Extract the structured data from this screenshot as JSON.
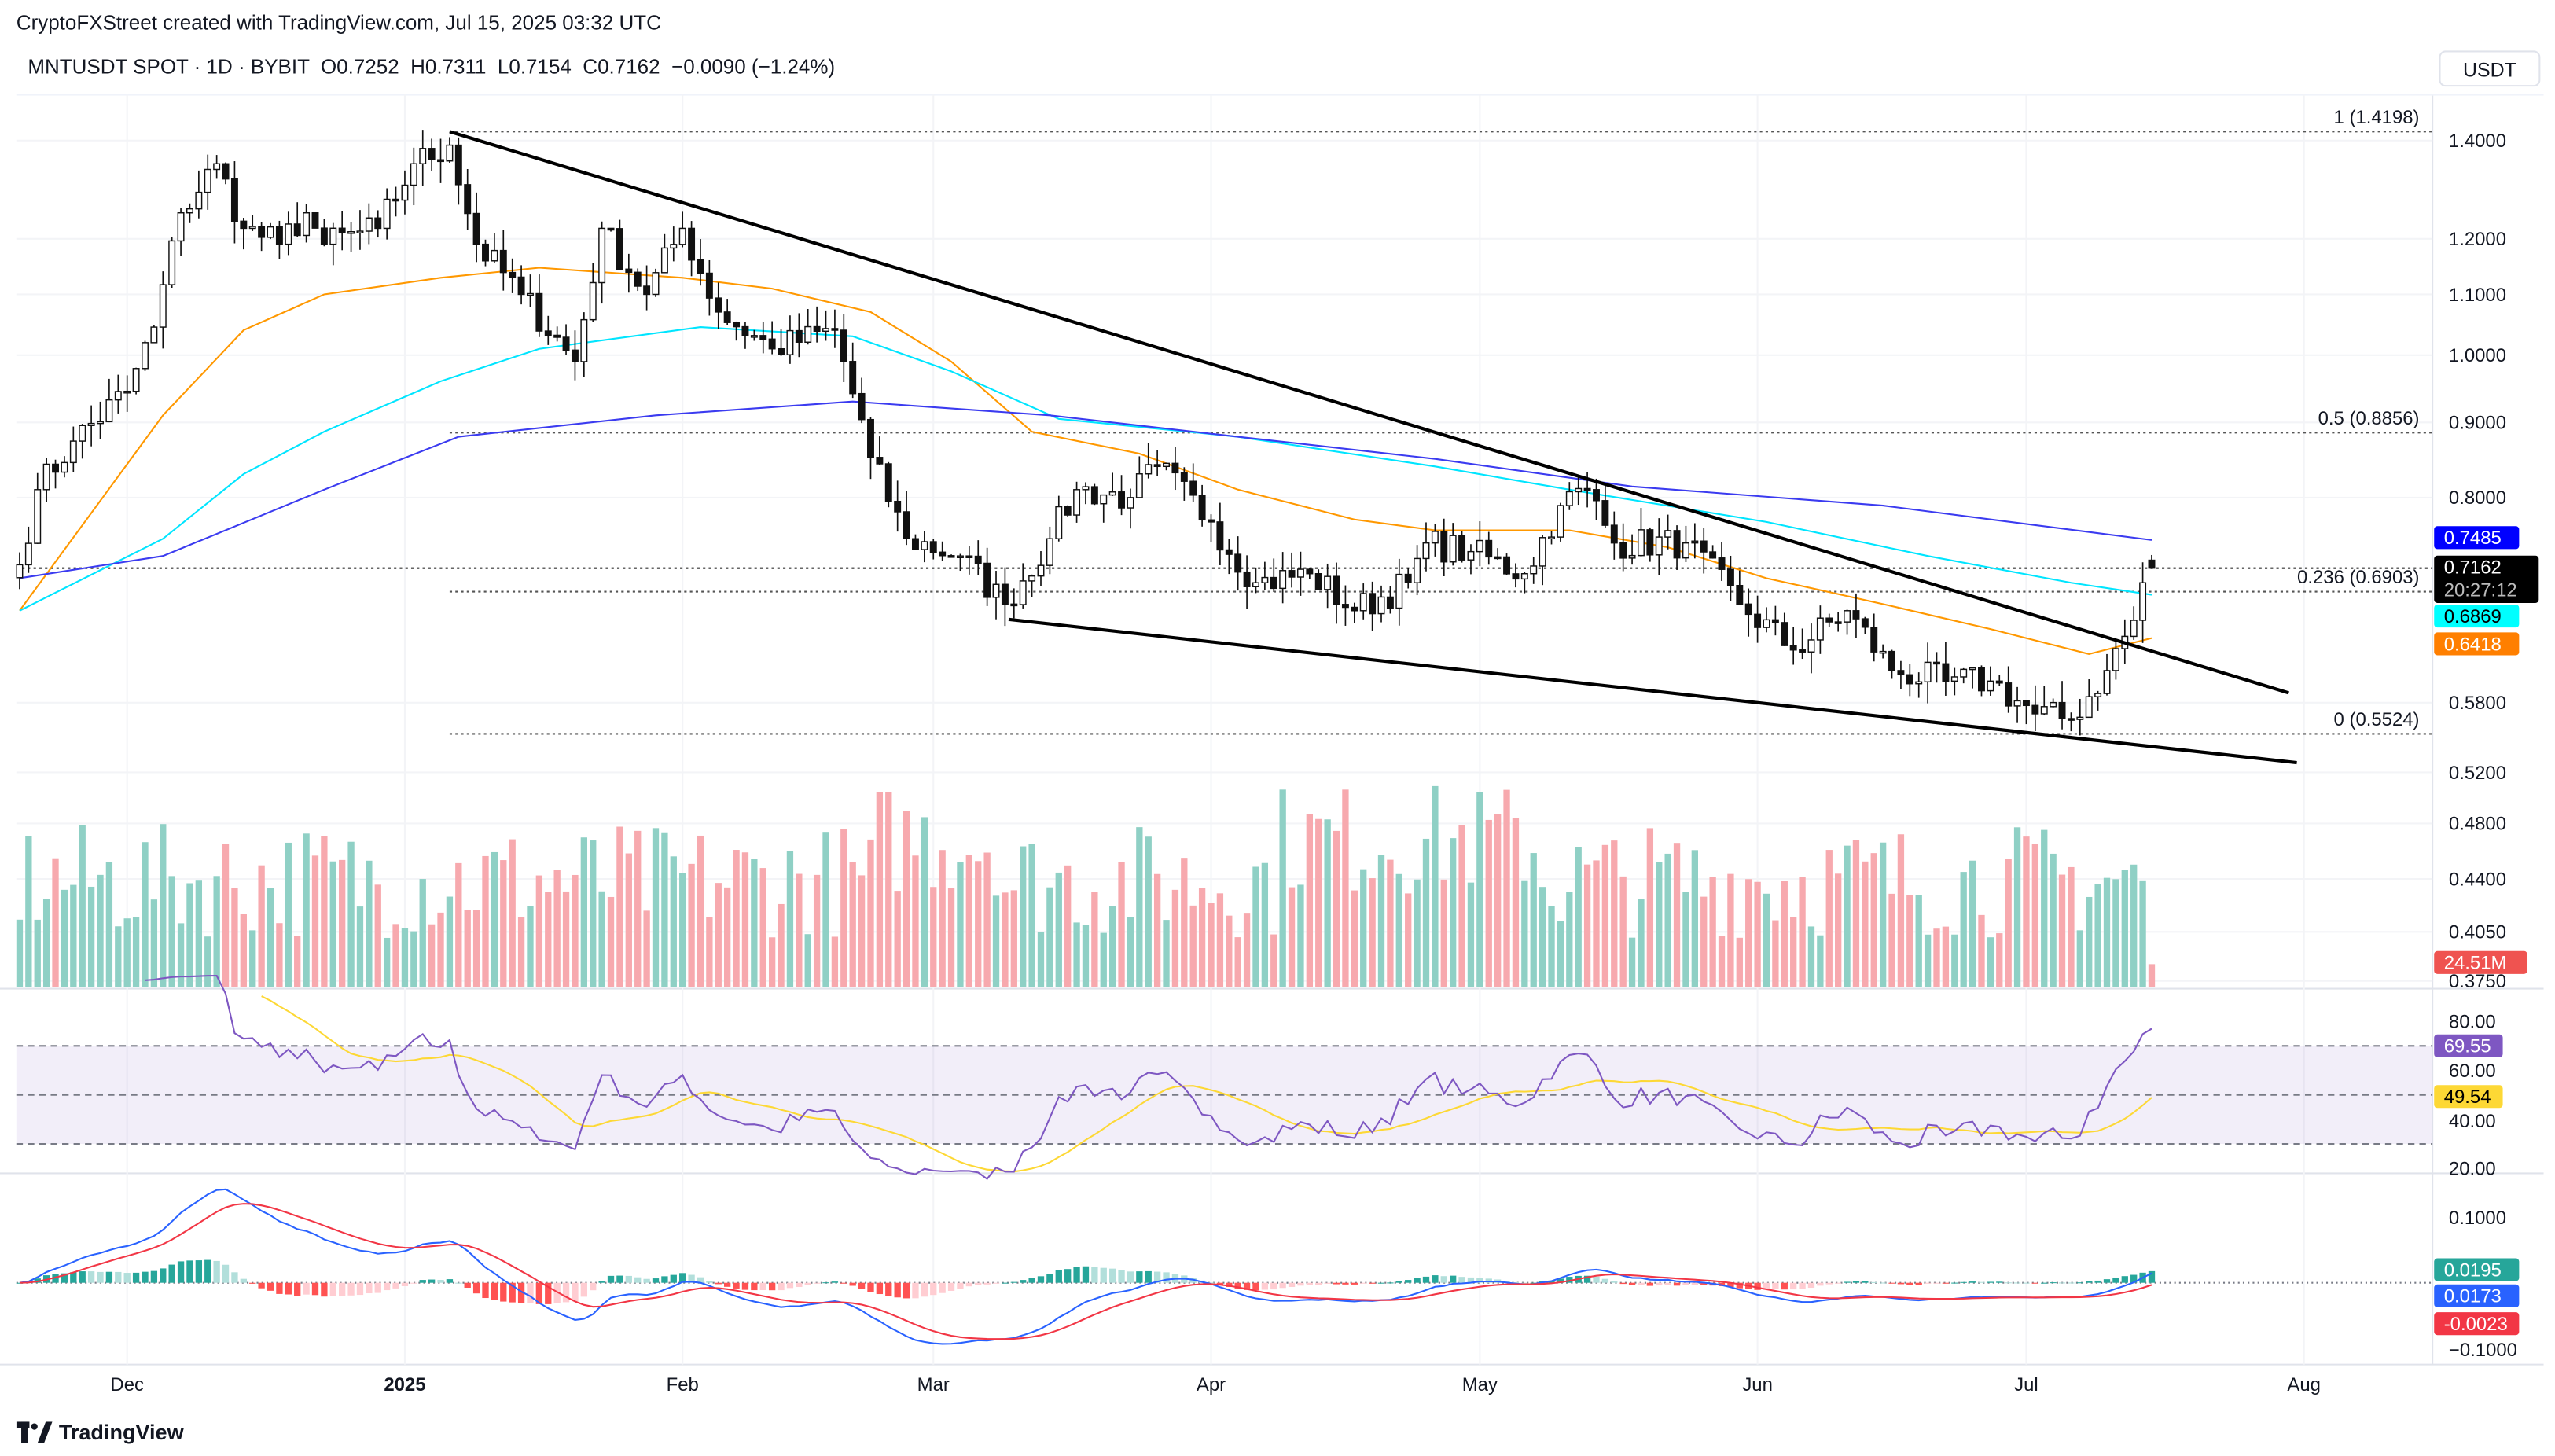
{
  "header": {
    "credit": "CryptoFXStreet created with TradingView.com, Jul 15, 2025 03:32 UTC",
    "legend": "MNTUSDT SPOT · 1D · BYBIT  O0.7252  H0.7311  L0.7154  C0.7162  −0.0090 (−1.24%)",
    "currency_button": "USDT"
  },
  "footer": {
    "logo": "TradingView"
  },
  "colors": {
    "up": "#089981",
    "down": "#f23645",
    "ma50": "#ff9800",
    "ma100": "#00e5ff",
    "ma200": "#3b3bf0",
    "rsi": "#7e57c2",
    "rsi_ma": "#fdd835",
    "macd": "#2962ff",
    "signal": "#f23645"
  },
  "chart_data": {
    "type": "candlestick",
    "symbol": "MNTUSDT",
    "interval": "1D",
    "scale": "log",
    "start_date": "2024-11-19",
    "end_date": "2025-07-15",
    "close_keypoints": [
      [
        0,
        0.72
      ],
      [
        2,
        0.81
      ],
      [
        6,
        0.874
      ],
      [
        12,
        0.945
      ],
      [
        15,
        1.045
      ],
      [
        18,
        1.25
      ],
      [
        22,
        1.35
      ],
      [
        25,
        1.22
      ],
      [
        29,
        1.19
      ],
      [
        32,
        1.25
      ],
      [
        34,
        1.19
      ],
      [
        40,
        1.22
      ],
      [
        44,
        1.35
      ],
      [
        48,
        1.39
      ],
      [
        51,
        1.19
      ],
      [
        56,
        1.1
      ],
      [
        62,
        0.99
      ],
      [
        65,
        1.22
      ],
      [
        70,
        1.1
      ],
      [
        74,
        1.22
      ],
      [
        78,
        1.07
      ],
      [
        84,
        1.01
      ],
      [
        91,
        1.04
      ],
      [
        95,
        0.852
      ],
      [
        99,
        0.75
      ],
      [
        105,
        0.73
      ],
      [
        110,
        0.677
      ],
      [
        115,
        0.75
      ],
      [
        118,
        0.81
      ],
      [
        124,
        0.8
      ],
      [
        127,
        0.84
      ],
      [
        133,
        0.77
      ],
      [
        138,
        0.7
      ],
      [
        144,
        0.71
      ],
      [
        149,
        0.67
      ],
      [
        155,
        0.7
      ],
      [
        157,
        0.745
      ],
      [
        162,
        0.735
      ],
      [
        168,
        0.71
      ],
      [
        172,
        0.79
      ],
      [
        175,
        0.81
      ],
      [
        178,
        0.745
      ],
      [
        186,
        0.745
      ],
      [
        192,
        0.677
      ],
      [
        198,
        0.63
      ],
      [
        204,
        0.67
      ],
      [
        209,
        0.61
      ],
      [
        215,
        0.6
      ],
      [
        220,
        0.6
      ],
      [
        225,
        0.57
      ],
      [
        229,
        0.565
      ],
      [
        233,
        0.61
      ],
      [
        236,
        0.66
      ],
      [
        237,
        0.7
      ],
      [
        238,
        0.7162
      ]
    ],
    "last_ohlc": {
      "open": 0.7252,
      "high": 0.7311,
      "low": 0.7154,
      "close": 0.7162,
      "change": -0.009,
      "change_pct": -1.24
    },
    "moving_averages": [
      {
        "name": "MA50",
        "last": "0.6418",
        "points": [
          [
            0,
            0.67
          ],
          [
            16,
            0.91
          ],
          [
            25,
            1.04
          ],
          [
            34,
            1.1
          ],
          [
            47,
            1.129
          ],
          [
            58,
            1.147
          ],
          [
            74,
            1.129
          ],
          [
            84,
            1.11
          ],
          [
            95,
            1.07
          ],
          [
            104,
            0.99
          ],
          [
            113,
            0.887
          ],
          [
            125,
            0.857
          ],
          [
            136,
            0.81
          ],
          [
            149,
            0.773
          ],
          [
            158,
            0.76
          ],
          [
            173,
            0.76
          ],
          [
            184,
            0.74
          ],
          [
            195,
            0.705
          ],
          [
            208,
            0.677
          ],
          [
            220,
            0.651
          ],
          [
            231,
            0.626
          ],
          [
            238,
            0.6418
          ]
        ]
      },
      {
        "name": "MA100",
        "last": "0.6869",
        "points": [
          [
            0,
            0.67
          ],
          [
            16,
            0.75
          ],
          [
            25,
            0.83
          ],
          [
            34,
            0.887
          ],
          [
            47,
            0.96
          ],
          [
            58,
            1.01
          ],
          [
            76,
            1.045
          ],
          [
            93,
            1.03
          ],
          [
            104,
            0.975
          ],
          [
            116,
            0.905
          ],
          [
            136,
            0.88
          ],
          [
            158,
            0.84
          ],
          [
            173,
            0.81
          ],
          [
            195,
            0.77
          ],
          [
            213,
            0.73
          ],
          [
            229,
            0.7
          ],
          [
            238,
            0.6869
          ]
        ]
      },
      {
        "name": "MA200",
        "last": "0.7485",
        "points": [
          [
            0,
            0.705
          ],
          [
            16,
            0.73
          ],
          [
            34,
            0.81
          ],
          [
            49,
            0.88
          ],
          [
            71,
            0.91
          ],
          [
            93,
            0.93
          ],
          [
            115,
            0.91
          ],
          [
            136,
            0.88
          ],
          [
            158,
            0.85
          ],
          [
            180,
            0.814
          ],
          [
            208,
            0.79
          ],
          [
            238,
            0.7485
          ]
        ]
      }
    ],
    "trendlines": [
      {
        "name": "upper",
        "from": [
          48,
          1.4198
        ],
        "to": [
          253.3,
          0.589
        ]
      },
      {
        "name": "lower",
        "from": [
          110.4,
          0.661
        ],
        "to": [
          254.2,
          0.528
        ]
      }
    ],
    "fib_levels": [
      {
        "label": "1 (1.4198)",
        "value": 1.4198
      },
      {
        "label": "0.5 (0.8856)",
        "value": 0.8856
      },
      {
        "label": "0.236 (0.6903)",
        "value": 0.6903
      },
      {
        "label": "0 (0.5524)",
        "value": 0.5524
      }
    ],
    "fib_start_day": 48,
    "price_axis": [
      "1.4000",
      "1.2000",
      "1.1000",
      "1.0000",
      "0.9000",
      "0.8000",
      "0.5800",
      "0.5200",
      "0.4800",
      "0.4400",
      "0.4050",
      "0.3750"
    ],
    "x_axis": [
      {
        "label": "Dec",
        "day": 12
      },
      {
        "label": "2025",
        "day": 43
      },
      {
        "label": "Feb",
        "day": 74
      },
      {
        "label": "Mar",
        "day": 102
      },
      {
        "label": "Apr",
        "day": 133
      },
      {
        "label": "May",
        "day": 163
      },
      {
        "label": "Jun",
        "day": 194
      },
      {
        "label": "Jul",
        "day": 224
      },
      {
        "label": "Aug",
        "day": 255
      }
    ],
    "badges": {
      "ma200": "0.7485",
      "price": "0.7162",
      "countdown": "20:27:12",
      "ma100": "0.6869",
      "ma50": "0.6418",
      "volume": "24.51M",
      "rsi": "69.55",
      "rsi_ma": "49.54",
      "macd_hist": "0.0195",
      "macd": "0.0173",
      "macd_signal": "-0.0023"
    },
    "rsi_axis": [
      "80.00",
      "60.00",
      "40.00",
      "20.00"
    ],
    "rsi_bands": [
      70,
      50,
      30
    ],
    "macd_axis": [
      "0.1000",
      "−0.1000"
    ]
  }
}
